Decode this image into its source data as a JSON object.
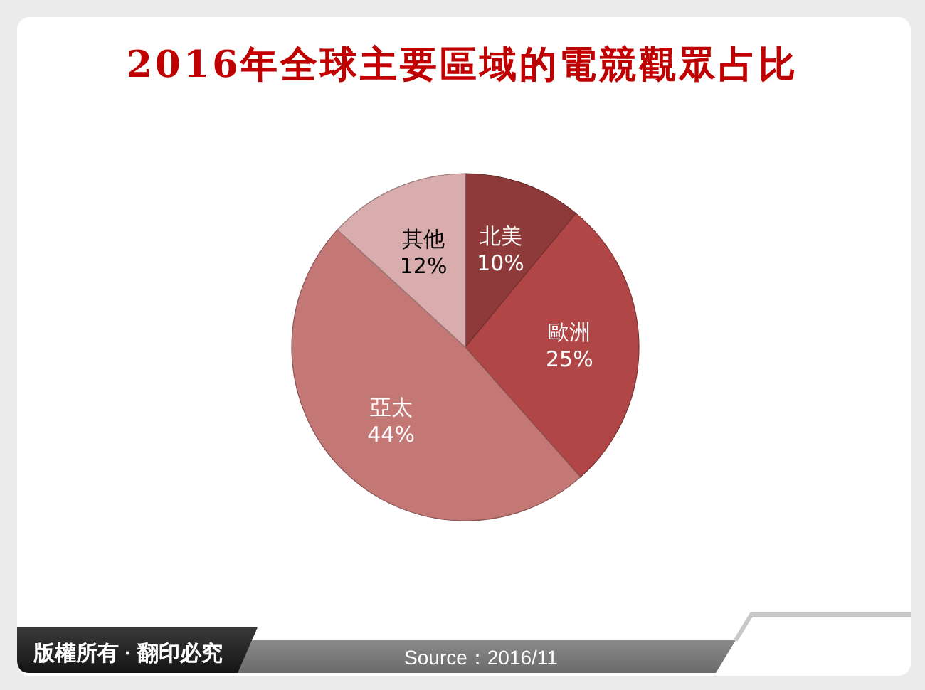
{
  "chart_data": {
    "type": "pie",
    "title": "2016年全球主要區域的電競觀眾占比",
    "categories": [
      "北美",
      "歐洲",
      "亞太",
      "其他"
    ],
    "values": [
      10,
      25,
      44,
      12
    ],
    "value_labels": [
      "10%",
      "25%",
      "44%",
      "12%"
    ],
    "colors": [
      "#8e3a3a",
      "#b04646",
      "#c37876",
      "#d9adad"
    ],
    "annotations": [
      "版權所有 · 翻印必究",
      "Source：2016/11"
    ]
  }
}
